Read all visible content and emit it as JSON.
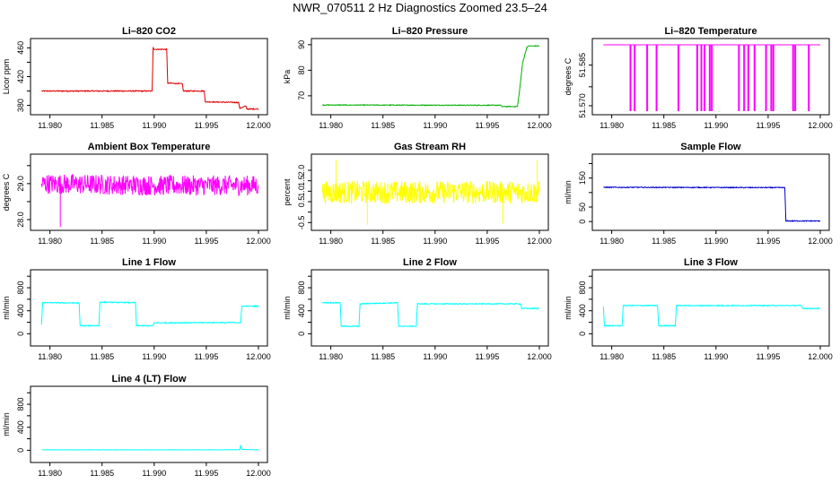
{
  "page_title": "NWR_070511  2 Hz Diagnostics Zoomed 23.5–24",
  "chart_data": [
    {
      "type": "line",
      "title": "Li–820 CO2",
      "ylabel": "Licor ppm",
      "color": "#e00000",
      "xlim": [
        11.979,
        12.0
      ],
      "ylim": [
        372,
        468
      ],
      "yticks": [
        380,
        400,
        420,
        440,
        460
      ],
      "ytick_labels": [
        "380",
        "",
        "420",
        "",
        "460"
      ],
      "xticks": [
        11.98,
        11.985,
        11.99,
        11.995,
        12.0
      ],
      "xtick_labels": [
        "11.980",
        "11.985",
        "11.990",
        "11.995",
        "12.000"
      ],
      "series": [
        {
          "name": "CO2",
          "points": [
            [
              11.9792,
              400
            ],
            [
              11.9898,
              400
            ],
            [
              11.9899,
              461
            ],
            [
              11.99,
              458
            ],
            [
              11.9912,
              458
            ],
            [
              11.9913,
              411
            ],
            [
              11.9927,
              410
            ],
            [
              11.9928,
              400
            ],
            [
              11.9948,
              400
            ],
            [
              11.9949,
              385
            ],
            [
              11.9981,
              384
            ],
            [
              11.9982,
              376
            ],
            [
              11.9988,
              379
            ],
            [
              11.9989,
              375
            ],
            [
              12.0,
              375
            ]
          ],
          "noise": 0.7
        }
      ]
    },
    {
      "type": "line",
      "title": "Li–820 Pressure",
      "ylabel": "kPa",
      "color": "#00b000",
      "xlim": [
        11.979,
        12.0
      ],
      "ylim": [
        64,
        91
      ],
      "yticks": [
        70,
        80,
        90
      ],
      "ytick_labels": [
        "70",
        "80",
        "90"
      ],
      "xticks": [
        11.98,
        11.985,
        11.99,
        11.995,
        12.0
      ],
      "xtick_labels": [
        "11.980",
        "11.985",
        "11.990",
        "11.995",
        "12.000"
      ],
      "series": [
        {
          "name": "Pressure",
          "points": [
            [
              11.9792,
              66.4
            ],
            [
              11.9963,
              66.3
            ],
            [
              11.9964,
              65.8
            ],
            [
              11.9979,
              65.8
            ],
            [
              11.9981,
              72
            ],
            [
              11.9984,
              83
            ],
            [
              11.9988,
              89
            ],
            [
              11.999,
              89.5
            ],
            [
              12.0,
              89.5
            ]
          ],
          "noise": 0.15
        }
      ]
    },
    {
      "type": "line",
      "title": "Li–820 Temperature",
      "ylabel": "degrees C",
      "color": "#ff00ff",
      "xlim": [
        11.979,
        12.0
      ],
      "ylim": [
        51.568,
        51.5935
      ],
      "yticks": [
        51.57,
        51.577,
        51.585
      ],
      "ytick_labels": [
        "51.570",
        "",
        "51.585"
      ],
      "xticks": [
        11.98,
        11.985,
        11.99,
        11.995,
        12.0
      ],
      "xtick_labels": [
        "11.980",
        "11.985",
        "11.990",
        "11.995",
        "12.000"
      ],
      "series": [
        {
          "name": "Temperature",
          "points": [
            [
              11.9792,
              51.5925
            ],
            [
              12.0,
              51.5925
            ]
          ],
          "noise": 0,
          "dips": [
            11.9818,
            11.9822,
            11.9834,
            11.9843,
            11.9864,
            11.9882,
            11.9886,
            11.9889,
            11.9894,
            11.9896,
            11.9922,
            11.9927,
            11.9931,
            11.9937,
            11.9948,
            11.9953,
            11.9955,
            11.9974,
            11.9976,
            11.9989
          ],
          "dip_to": 51.568
        }
      ]
    },
    {
      "type": "line",
      "title": "Ambient Box Temperature",
      "ylabel": "degrees C",
      "color": "#ff00ff",
      "xlim": [
        11.979,
        12.0
      ],
      "ylim": [
        27.8,
        29.72
      ],
      "yticks": [
        28.0,
        28.5,
        29.0,
        29.5
      ],
      "ytick_labels": [
        "28.0",
        "",
        "29.0",
        ""
      ],
      "xticks": [
        11.98,
        11.985,
        11.99,
        11.995,
        12.0
      ],
      "xtick_labels": [
        "11.980",
        "11.985",
        "11.990",
        "11.995",
        "12.000"
      ],
      "series": [
        {
          "name": "Ambient",
          "points": [
            [
              11.9792,
              29.0
            ],
            [
              11.99,
              28.95
            ],
            [
              12.0,
              28.95
            ]
          ],
          "noise": 0.28,
          "spikes": [
            [
              11.981,
              27.8
            ]
          ]
        }
      ]
    },
    {
      "type": "line",
      "title": "Gas Stream RH",
      "ylabel": "percent",
      "color": "#ffff00",
      "xlim": [
        11.979,
        12.0
      ],
      "ylim": [
        -0.7,
        2.6
      ],
      "yticks": [
        -0.5,
        0.0,
        0.5,
        1.0,
        1.5,
        2.0
      ],
      "ytick_labels": [
        "-0.5",
        "",
        "0.5",
        "1.0",
        "1.5",
        "2.0"
      ],
      "xticks": [
        11.98,
        11.985,
        11.99,
        11.995,
        12.0
      ],
      "xtick_labels": [
        "11.980",
        "11.985",
        "11.990",
        "11.995",
        "12.000"
      ],
      "series": [
        {
          "name": "RH",
          "points": [
            [
              11.9792,
              0.95
            ],
            [
              12.0,
              0.95
            ]
          ],
          "noise": 0.55,
          "spikes": [
            [
              11.9805,
              2.5
            ],
            [
              11.9998,
              2.5
            ],
            [
              11.9835,
              -0.6
            ],
            [
              11.9965,
              -0.55
            ]
          ]
        }
      ]
    },
    {
      "type": "line",
      "title": "Sample Flow",
      "ylabel": "ml/min",
      "color": "#0000cc",
      "xlim": [
        11.979,
        12.0
      ],
      "ylim": [
        -18,
        220
      ],
      "yticks": [
        0,
        50,
        100,
        150,
        200
      ],
      "ytick_labels": [
        "0",
        "50",
        "",
        "150",
        ""
      ],
      "xticks": [
        11.98,
        11.985,
        11.99,
        11.995,
        12.0
      ],
      "xtick_labels": [
        "11.980",
        "11.985",
        "11.990",
        "11.995",
        "12.000"
      ],
      "series": [
        {
          "name": "Sample",
          "points": [
            [
              11.9792,
              118
            ],
            [
              11.9966,
              117
            ],
            [
              11.9967,
              2
            ],
            [
              12.0,
              2
            ]
          ],
          "noise": 1.5
        }
      ]
    },
    {
      "type": "line",
      "title": "Line 1 Flow",
      "ylabel": "ml/min",
      "color": "#00ffff",
      "xlim": [
        11.979,
        12.0
      ],
      "ylim": [
        -150,
        1050
      ],
      "yticks": [
        0,
        200,
        400,
        600,
        800,
        1000
      ],
      "ytick_labels": [
        "0",
        "",
        "400",
        "",
        "800",
        ""
      ],
      "xticks": [
        11.98,
        11.985,
        11.99,
        11.995,
        12.0
      ],
      "xtick_labels": [
        "11.980",
        "11.985",
        "11.990",
        "11.995",
        "12.000"
      ],
      "series": [
        {
          "name": "Line1",
          "points": [
            [
              11.9792,
              160
            ],
            [
              11.9793,
              540
            ],
            [
              11.9828,
              535
            ],
            [
              11.9829,
              140
            ],
            [
              11.9847,
              140
            ],
            [
              11.9848,
              550
            ],
            [
              11.9882,
              540
            ],
            [
              11.9883,
              140
            ],
            [
              11.9899,
              140
            ],
            [
              11.99,
              190
            ],
            [
              11.9983,
              195
            ],
            [
              11.9984,
              480
            ],
            [
              12.0,
              480
            ]
          ],
          "noise": 8
        }
      ]
    },
    {
      "type": "line",
      "title": "Line 2 Flow",
      "ylabel": "ml/min",
      "color": "#00ffff",
      "xlim": [
        11.979,
        12.0
      ],
      "ylim": [
        -150,
        1050
      ],
      "yticks": [
        0,
        200,
        400,
        600,
        800,
        1000
      ],
      "ytick_labels": [
        "0",
        "",
        "400",
        "",
        "800",
        ""
      ],
      "xticks": [
        11.98,
        11.985,
        11.99,
        11.995,
        12.0
      ],
      "xtick_labels": [
        "11.980",
        "11.985",
        "11.990",
        "11.995",
        "12.000"
      ],
      "series": [
        {
          "name": "Line2",
          "points": [
            [
              11.9792,
              540
            ],
            [
              11.9809,
              540
            ],
            [
              11.981,
              130
            ],
            [
              11.9827,
              130
            ],
            [
              11.9828,
              520
            ],
            [
              11.9864,
              540
            ],
            [
              11.9865,
              130
            ],
            [
              11.9882,
              130
            ],
            [
              11.9883,
              520
            ],
            [
              11.9982,
              520
            ],
            [
              11.9983,
              440
            ],
            [
              12.0,
              440
            ]
          ],
          "noise": 8
        }
      ]
    },
    {
      "type": "line",
      "title": "Line 3 Flow",
      "ylabel": "ml/min",
      "color": "#00ffff",
      "xlim": [
        11.979,
        12.0
      ],
      "ylim": [
        -150,
        1050
      ],
      "yticks": [
        0,
        200,
        400,
        600,
        800,
        1000
      ],
      "ytick_labels": [
        "0",
        "",
        "400",
        "",
        "800",
        ""
      ],
      "xticks": [
        11.98,
        11.985,
        11.99,
        11.995,
        12.0
      ],
      "xtick_labels": [
        "11.980",
        "11.985",
        "11.990",
        "11.995",
        "12.000"
      ],
      "series": [
        {
          "name": "Line3",
          "points": [
            [
              11.9792,
              470
            ],
            [
              11.9793,
              140
            ],
            [
              11.981,
              140
            ],
            [
              11.9811,
              490
            ],
            [
              11.9844,
              490
            ],
            [
              11.9845,
              140
            ],
            [
              11.9861,
              140
            ],
            [
              11.9862,
              490
            ],
            [
              11.9982,
              490
            ],
            [
              11.9983,
              440
            ],
            [
              12.0,
              440
            ]
          ],
          "noise": 8
        }
      ]
    },
    {
      "type": "line",
      "title": "Line 4 (LT) Flow",
      "ylabel": "ml/min",
      "color": "#00ffff",
      "xlim": [
        11.979,
        12.0
      ],
      "ylim": [
        -150,
        1050
      ],
      "yticks": [
        0,
        200,
        400,
        600,
        800,
        1000
      ],
      "ytick_labels": [
        "0",
        "",
        "400",
        "",
        "800",
        ""
      ],
      "xticks": [
        11.98,
        11.985,
        11.99,
        11.995,
        12.0
      ],
      "xtick_labels": [
        "11.980",
        "11.985",
        "11.990",
        "11.995",
        "12.000"
      ],
      "series": [
        {
          "name": "Line4",
          "points": [
            [
              11.9792,
              8
            ],
            [
              11.9982,
              8
            ],
            [
              11.9983,
              90
            ],
            [
              11.9984,
              15
            ],
            [
              12.0,
              8
            ]
          ],
          "noise": 3
        }
      ]
    }
  ]
}
